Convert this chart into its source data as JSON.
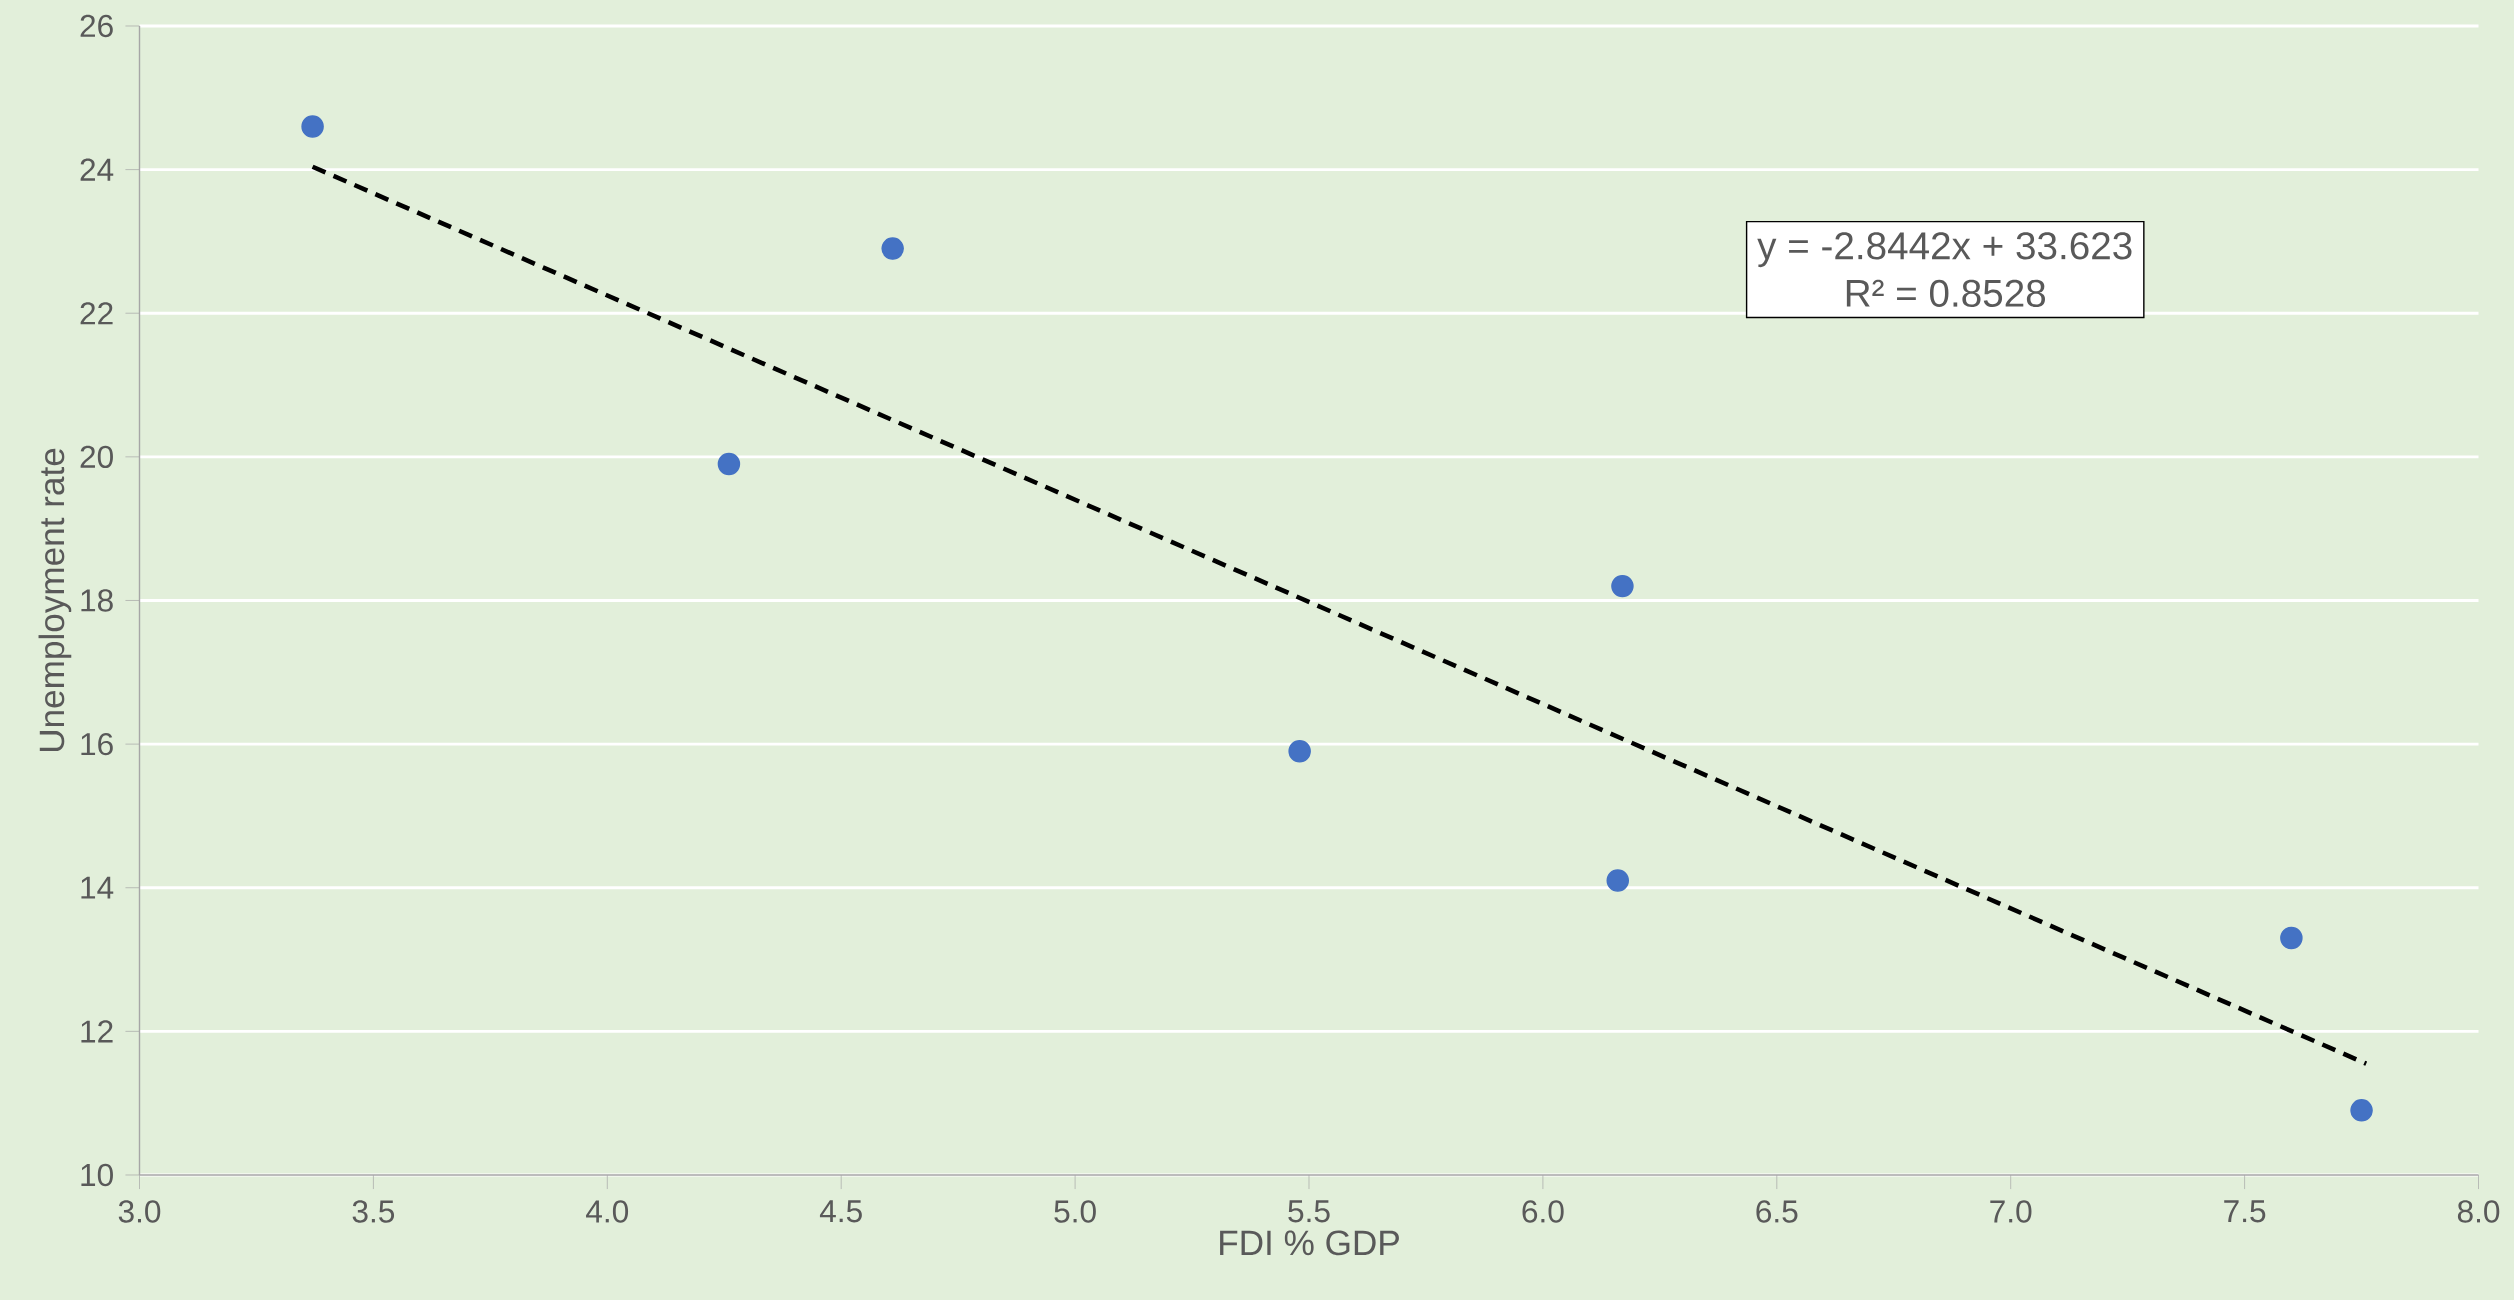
{
  "chart_data": {
    "type": "scatter",
    "xlabel": "FDI % GDP",
    "ylabel": "Unemployment rate",
    "xlim": [
      3.0,
      8.0
    ],
    "xticks": [
      {
        "value": 3.0,
        "label": "3.0"
      },
      {
        "value": 3.5,
        "label": "3.5"
      },
      {
        "value": 4.0,
        "label": "4.0"
      },
      {
        "value": 4.5,
        "label": "4.5"
      },
      {
        "value": 5.0,
        "label": "5.0"
      },
      {
        "value": 5.5,
        "label": "5.5"
      },
      {
        "value": 6.0,
        "label": "6.0"
      },
      {
        "value": 6.5,
        "label": "6.5"
      },
      {
        "value": 7.0,
        "label": "7.0"
      },
      {
        "value": 7.5,
        "label": "7.5"
      },
      {
        "value": 8.0,
        "label": "8.0"
      }
    ],
    "ylim": [
      10,
      26
    ],
    "yticks": [
      10,
      12,
      14,
      16,
      18,
      20,
      22,
      24,
      26
    ],
    "grid": "y",
    "series": [
      {
        "color": "#4472c4",
        "marker": "circle",
        "x": [
          3.37,
          4.61,
          4.26,
          5.48,
          6.17,
          6.16,
          7.6,
          7.75
        ],
        "values": [
          24.6,
          22.9,
          19.9,
          15.9,
          18.2,
          14.1,
          13.3,
          10.9
        ]
      },
      {
        "type": "line",
        "color": "#000000",
        "line_style": "dashed",
        "marker": "none",
        "x": [
          3.37,
          7.76
        ],
        "values": [
          24.04,
          11.55
        ]
      }
    ],
    "annotations": [
      "y = -2.8442x + 33.623",
      "R² = 0.8528"
    ]
  }
}
